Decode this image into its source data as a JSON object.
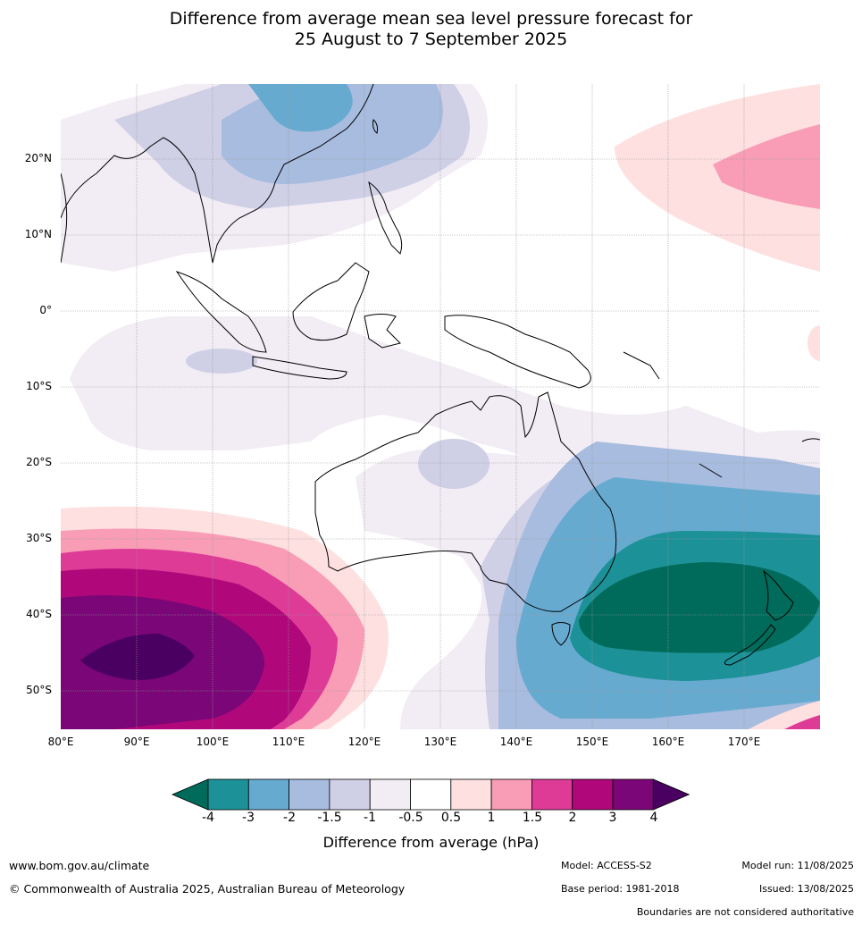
{
  "title": {
    "line1": "Difference from average mean sea level pressure forecast for",
    "line2": "25 August to 7 September 2025"
  },
  "map": {
    "lat_labels": [
      "20°N",
      "10°N",
      "0°",
      "10°S",
      "20°S",
      "30°S",
      "40°S",
      "50°S"
    ],
    "lon_labels": [
      "80°E",
      "90°E",
      "100°E",
      "110°E",
      "120°E",
      "130°E",
      "140°E",
      "150°E",
      "160°E",
      "170°E"
    ]
  },
  "colorbar": {
    "ticks": [
      "-4",
      "-3",
      "-2",
      "-1.5",
      "-1",
      "-0.5",
      "0.5",
      "1",
      "1.5",
      "2",
      "3",
      "4"
    ],
    "colors": [
      "#006b5a",
      "#1c9197",
      "#67aad0",
      "#a7bcde",
      "#cfd0e6",
      "#f2ecf5",
      "#ffffff",
      "#fee0e0",
      "#f99cb5",
      "#de3b97",
      "#b0087a",
      "#7b0677",
      "#4a0060"
    ],
    "label": "Difference from average (hPa)"
  },
  "footer": {
    "website": "www.bom.gov.au/climate",
    "copyright": "© Commonwealth of Australia 2025, Australian Bureau of Meteorology",
    "model": "Model: ACCESS-S2",
    "base_period": "Base period: 1981-2018",
    "model_run": "Model run: 11/08/2025",
    "issued": "Issued: 13/08/2025",
    "boundaries": "Boundaries are not considered authoritative"
  }
}
